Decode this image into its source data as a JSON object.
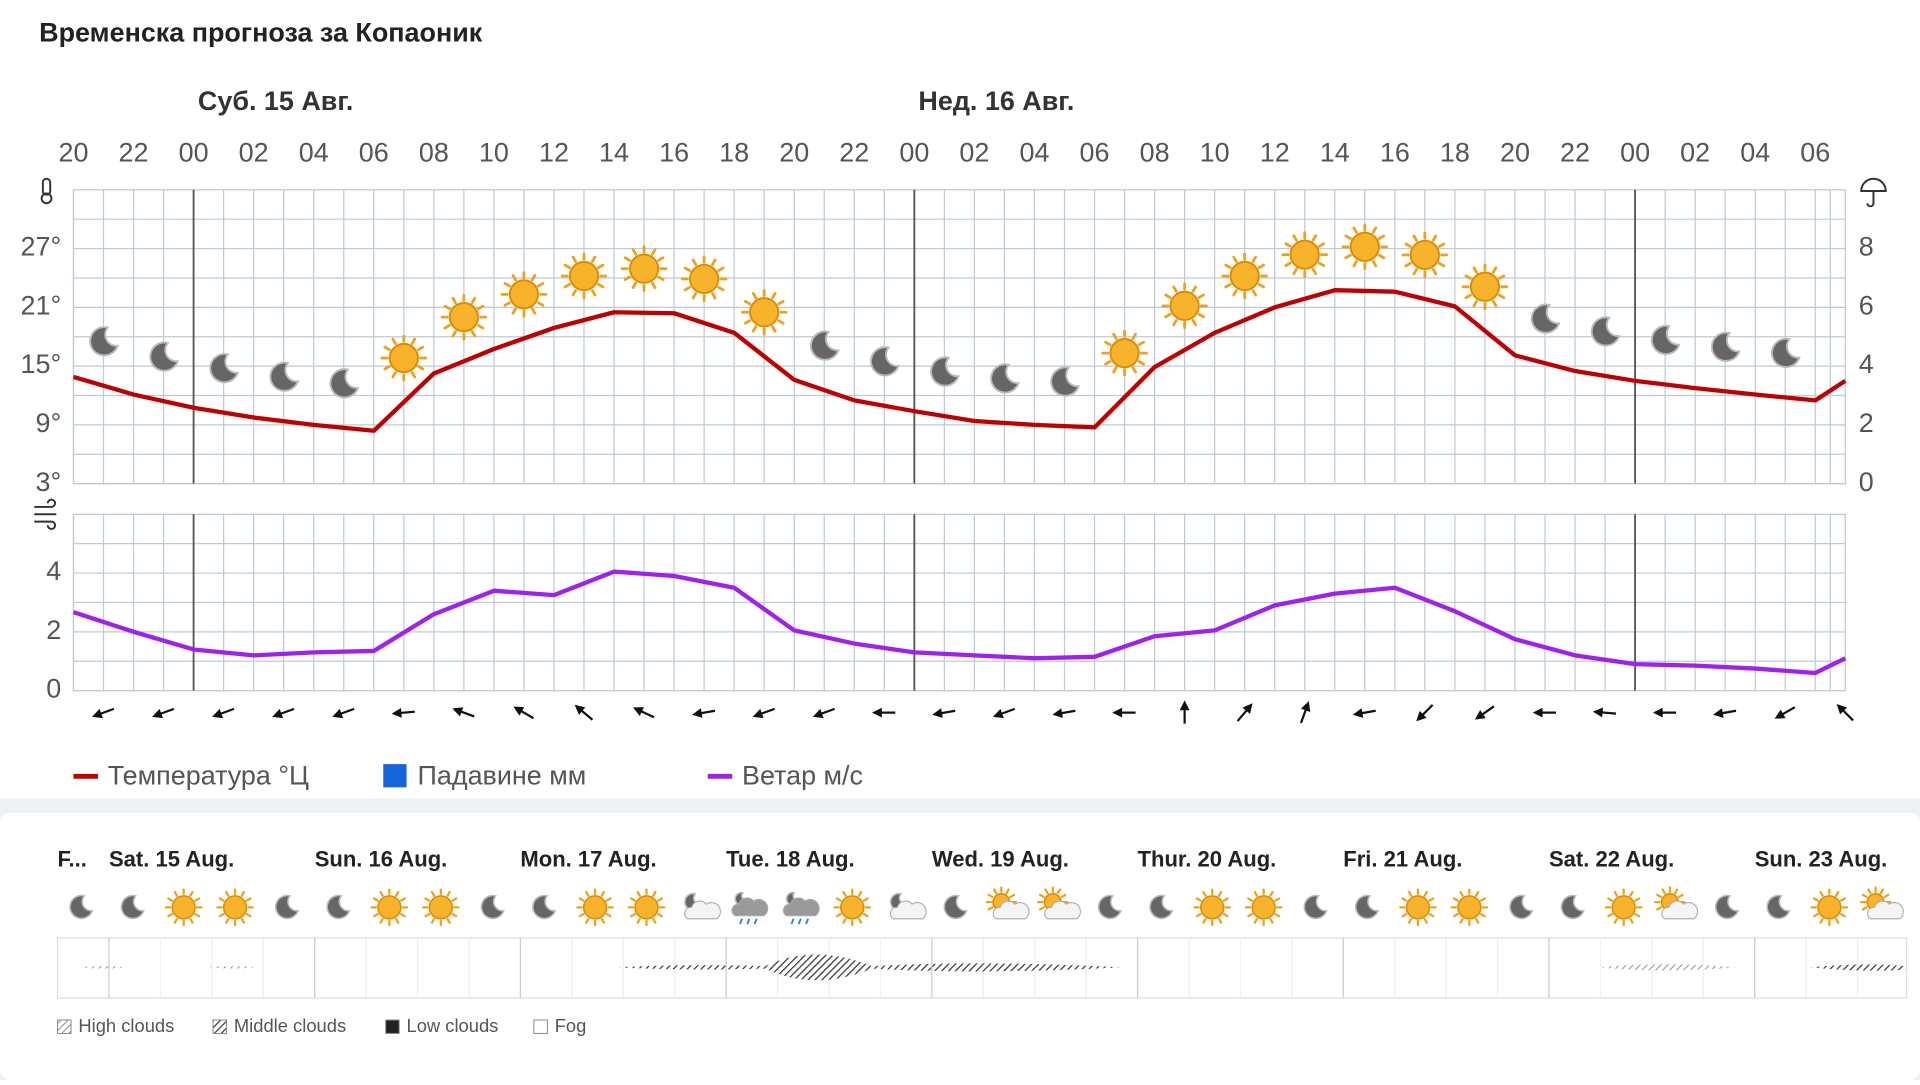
{
  "title": "Временска прогноза за Копаоник",
  "chart_data": [
    {
      "type": "line",
      "xlim": [
        0,
        59
      ],
      "xticks": [
        {
          "value": 0,
          "label": "20"
        },
        {
          "value": 2,
          "label": "22"
        },
        {
          "value": 4,
          "label": "00"
        },
        {
          "value": 6,
          "label": "02"
        },
        {
          "value": 8,
          "label": "04"
        },
        {
          "value": 10,
          "label": "06"
        },
        {
          "value": 12,
          "label": "08"
        },
        {
          "value": 14,
          "label": "10"
        },
        {
          "value": 16,
          "label": "12"
        },
        {
          "value": 18,
          "label": "14"
        },
        {
          "value": 20,
          "label": "16"
        },
        {
          "value": 22,
          "label": "18"
        },
        {
          "value": 24,
          "label": "20"
        },
        {
          "value": 26,
          "label": "22"
        },
        {
          "value": 28,
          "label": "00"
        },
        {
          "value": 30,
          "label": "02"
        },
        {
          "value": 32,
          "label": "04"
        },
        {
          "value": 34,
          "label": "06"
        },
        {
          "value": 36,
          "label": "08"
        },
        {
          "value": 38,
          "label": "10"
        },
        {
          "value": 40,
          "label": "12"
        },
        {
          "value": 42,
          "label": "14"
        },
        {
          "value": 44,
          "label": "16"
        },
        {
          "value": 46,
          "label": "18"
        },
        {
          "value": 48,
          "label": "20"
        },
        {
          "value": 50,
          "label": "22"
        },
        {
          "value": 52,
          "label": "00"
        },
        {
          "value": 54,
          "label": "02"
        },
        {
          "value": 56,
          "label": "04"
        },
        {
          "value": 58,
          "label": "06"
        }
      ],
      "days": [
        {
          "label": "Суб. 15 Авг.",
          "start": 4
        },
        {
          "label": "Нед. 16 Авг.",
          "start": 28
        },
        {
          "label": null,
          "start": 52
        }
      ],
      "ylim": [
        3,
        33
      ],
      "yticks": [
        {
          "value": 3,
          "label": "3°"
        },
        {
          "value": 9,
          "label": "9°"
        },
        {
          "value": 15,
          "label": "15°"
        },
        {
          "value": 21,
          "label": "21°"
        },
        {
          "value": 27,
          "label": "27°"
        }
      ],
      "y2lim": [
        0,
        10
      ],
      "y2ticks": [
        0,
        2,
        4,
        6,
        8
      ],
      "grid": true,
      "x": [
        0,
        2,
        4,
        6,
        8,
        10,
        12,
        14,
        16,
        18,
        20,
        22,
        24,
        26,
        28,
        30,
        32,
        34,
        36,
        38,
        40,
        42,
        44,
        46,
        48,
        50,
        52,
        54,
        56,
        58,
        59
      ],
      "series": [
        {
          "name": "Температура °Ц",
          "color": "#c00000",
          "values": [
            13.9,
            12.1,
            10.75,
            9.75,
            9,
            8.4,
            14.25,
            16.75,
            18.9,
            20.5,
            20.4,
            18.4,
            13.6,
            11.5,
            10.4,
            9.4,
            9,
            8.75,
            14.9,
            18.4,
            21,
            22.75,
            22.6,
            21.1,
            16.1,
            14.5,
            13.5,
            12.75,
            12.1,
            11.5,
            13.5
          ]
        },
        {
          "name": "Падавине мм",
          "color": "#1565d8",
          "axis": "y2",
          "values": [
            0,
            0,
            0,
            0,
            0,
            0,
            0,
            0,
            0,
            0,
            0,
            0,
            0,
            0,
            0,
            0,
            0,
            0,
            0,
            0,
            0,
            0,
            0,
            0,
            0,
            0,
            0,
            0,
            0,
            0,
            0
          ]
        }
      ],
      "icons": {
        "x": [
          1,
          3,
          5,
          7,
          9,
          11,
          13,
          15,
          17,
          19,
          21,
          23,
          25,
          27,
          29,
          31,
          33,
          35,
          37,
          39,
          41,
          43,
          45,
          47,
          49,
          51,
          53,
          55,
          57
        ],
        "kinds": [
          "moon",
          "moon",
          "moon",
          "moon",
          "moon",
          "sun",
          "sun",
          "sun",
          "sun",
          "sun",
          "sun",
          "sun",
          "moon",
          "moon",
          "moon",
          "moon",
          "moon",
          "sun",
          "sun",
          "sun",
          "sun",
          "sun",
          "sun",
          "sun",
          "moon",
          "moon",
          "moon",
          "moon",
          "moon"
        ]
      }
    },
    {
      "type": "line",
      "xlim": [
        0,
        59
      ],
      "ylim": [
        0,
        6
      ],
      "yticks": [
        0,
        2,
        4
      ],
      "grid": true,
      "x": [
        0,
        2,
        4,
        6,
        8,
        10,
        12,
        14,
        16,
        18,
        20,
        22,
        24,
        26,
        28,
        30,
        32,
        34,
        36,
        38,
        40,
        42,
        44,
        46,
        48,
        50,
        52,
        54,
        56,
        58,
        59
      ],
      "series": [
        {
          "name": "Ветар м/с",
          "color": "#a020f0",
          "values": [
            2.67,
            2.0,
            1.4,
            1.2,
            1.3,
            1.35,
            2.6,
            3.4,
            3.25,
            4.05,
            3.9,
            3.5,
            2.05,
            1.6,
            1.3,
            1.2,
            1.1,
            1.15,
            1.85,
            2.05,
            2.9,
            3.3,
            3.5,
            2.7,
            1.75,
            1.2,
            0.9,
            0.85,
            0.75,
            0.6,
            1.1
          ]
        }
      ],
      "wind_direction": {
        "x": [
          1,
          3,
          5,
          7,
          9,
          11,
          13,
          15,
          17,
          19,
          21,
          23,
          25,
          27,
          29,
          31,
          33,
          35,
          37,
          39,
          41,
          43,
          45,
          47,
          49,
          51,
          53,
          55,
          57,
          59
        ],
        "values": [
          250,
          250,
          250,
          250,
          250,
          265,
          290,
          300,
          310,
          295,
          260,
          250,
          250,
          270,
          260,
          250,
          260,
          270,
          0,
          40,
          20,
          260,
          225,
          235,
          270,
          275,
          270,
          260,
          240,
          315
        ]
      }
    }
  ],
  "forecast": {
    "days": [
      "F...",
      "Sat. 15 Aug.",
      "Sun. 16 Aug.",
      "Mon. 17 Aug.",
      "Tue. 18 Aug.",
      "Wed. 19 Aug.",
      "Thur. 20 Aug.",
      "Fri. 21 Aug.",
      "Sat. 22 Aug.",
      "Sun. 23 Aug."
    ],
    "icons": [
      "moon",
      "moon",
      "sun",
      "sun",
      "moon",
      "moon",
      "sun",
      "sun",
      "moon",
      "moon",
      "sun",
      "sun",
      "partly-moon",
      "rain",
      "rain",
      "sun",
      "partly-moon",
      "moon",
      "partly-sun",
      "partly-sun",
      "moon",
      "moon",
      "sun",
      "sun",
      "moon",
      "moon",
      "sun",
      "sun",
      "moon",
      "moon",
      "sun",
      "partly-sun",
      "moon",
      "moon",
      "sun",
      "partly-sun"
    ],
    "legend": [
      "High clouds",
      "Middle clouds",
      "Low clouds",
      "Fog"
    ]
  }
}
